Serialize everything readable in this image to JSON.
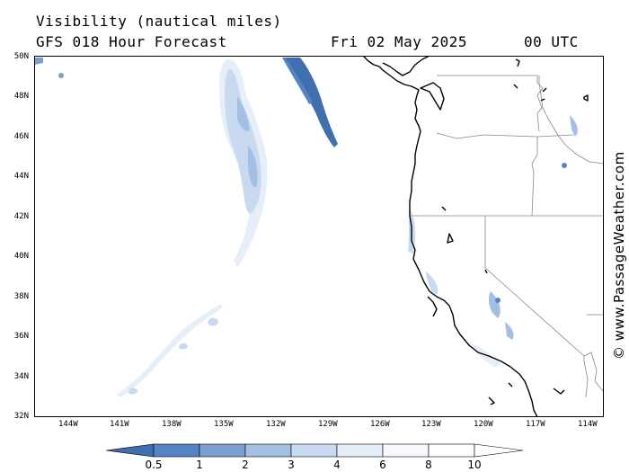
{
  "header": {
    "title": "Visibility (nautical miles)",
    "model": "GFS 018 Hour Forecast",
    "date": "Fri 02 May 2025",
    "time": "00 UTC"
  },
  "credit": "© www.PassageWeather.com",
  "map": {
    "lat_labels": [
      "50N",
      "48N",
      "46N",
      "44N",
      "42N",
      "40N",
      "38N",
      "36N",
      "34N",
      "32N"
    ],
    "lon_labels": [
      "144W",
      "141W",
      "138W",
      "135W",
      "132W",
      "129W",
      "126W",
      "123W",
      "120W",
      "117W",
      "114W"
    ],
    "lat_range": [
      32,
      50
    ],
    "lon_range": [
      -146,
      -113
    ],
    "colors": {
      "land_outline": "#000000",
      "state_border": "#888888",
      "vis_lt_1": "#3f6fae",
      "vis_1_2": "#5584c2",
      "vis_2_3": "#7aa0d2",
      "vis_3_4": "#a3bfe4",
      "vis_4_6": "#c9daf0",
      "vis_6_8": "#e6eefa"
    }
  },
  "colorbar": {
    "labels": [
      "0.5",
      "1",
      "2",
      "3",
      "4",
      "6",
      "8",
      "10"
    ],
    "colors": [
      "#3f6fae",
      "#5584c2",
      "#7aa0d2",
      "#a3bfe4",
      "#c9daf0",
      "#e6eefa",
      "#f7f9fe",
      "#ffffff"
    ]
  }
}
